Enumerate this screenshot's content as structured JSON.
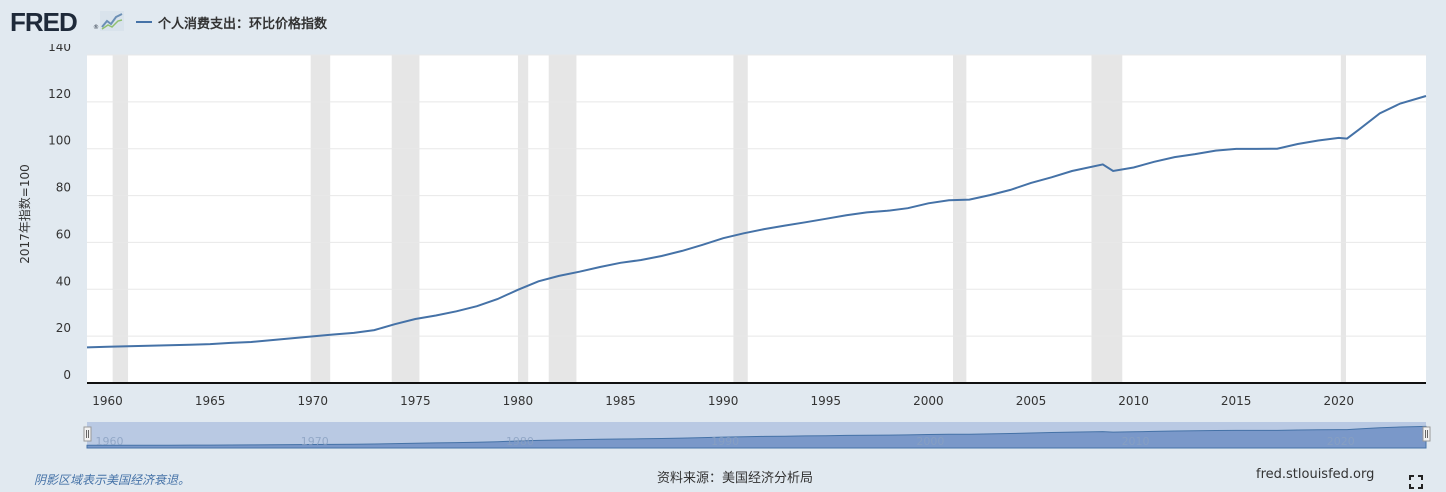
{
  "header": {
    "logo_text": "FRED",
    "logo_reg": "®",
    "logo_icon": "trend-chart-icon",
    "series_label": "个人消费支出：环比价格指数"
  },
  "chart_data": {
    "type": "line",
    "ylabel": "2017年指数=100",
    "xlim": [
      1959.0,
      2024.25
    ],
    "ylim": [
      0,
      140
    ],
    "y_ticks": [
      0,
      20,
      40,
      60,
      80,
      100,
      120,
      140
    ],
    "x_ticks": [
      1960,
      1965,
      1970,
      1975,
      1980,
      1985,
      1990,
      1995,
      2000,
      2005,
      2010,
      2015,
      2020
    ],
    "grid": true,
    "recessions": [
      [
        1960.25,
        1961.0
      ],
      [
        1969.9,
        1970.85
      ],
      [
        1973.85,
        1975.2
      ],
      [
        1980.0,
        1980.5
      ],
      [
        1981.5,
        1982.85
      ],
      [
        1990.5,
        1991.2
      ],
      [
        2001.2,
        2001.85
      ],
      [
        2007.95,
        2009.45
      ],
      [
        2020.1,
        2020.35
      ]
    ],
    "series": [
      {
        "color": "#4572a7",
        "x": [
          1959.0,
          1960,
          1961,
          1962,
          1963,
          1964,
          1965,
          1966,
          1967,
          1968,
          1969,
          1970,
          1971,
          1972,
          1973,
          1974,
          1975,
          1976,
          1977,
          1978,
          1979,
          1980,
          1981,
          1982,
          1983,
          1984,
          1985,
          1986,
          1987,
          1988,
          1989,
          1990,
          1991,
          1992,
          1993,
          1994,
          1995,
          1996,
          1997,
          1998,
          1999,
          2000,
          2001,
          2002,
          2003,
          2004,
          2005,
          2006,
          2007,
          2008.5,
          2009,
          2010,
          2011,
          2012,
          2013,
          2014,
          2015,
          2016,
          2017,
          2018,
          2019,
          2020,
          2020.4,
          2021,
          2022,
          2023,
          2024.25
        ],
        "values": [
          15.2,
          15.5,
          15.7,
          15.9,
          16.1,
          16.3,
          16.6,
          17.1,
          17.5,
          18.3,
          19.1,
          19.9,
          20.7,
          21.4,
          22.6,
          25.1,
          27.3,
          28.8,
          30.6,
          32.8,
          35.8,
          39.8,
          43.4,
          45.7,
          47.5,
          49.5,
          51.3,
          52.5,
          54.2,
          56.4,
          59.0,
          61.8,
          63.9,
          65.7,
          67.2,
          68.6,
          70.1,
          71.6,
          72.8,
          73.5,
          74.6,
          76.7,
          78.0,
          78.3,
          80.2,
          82.4,
          85.4,
          87.8,
          90.5,
          93.3,
          90.5,
          92.0,
          94.4,
          96.4,
          97.7,
          99.2,
          99.9,
          99.9,
          100.0,
          102.0,
          103.5,
          104.6,
          104.3,
          108.3,
          115.1,
          119.3,
          122.5
        ]
      }
    ]
  },
  "navigator": {
    "labels": [
      "1960",
      "1970",
      "1980",
      "1990",
      "2000",
      "2010",
      "2020"
    ]
  },
  "footer": {
    "note": "阴影区域表示美国经济衰退。",
    "source": "资料来源：美国经济分析局",
    "site": "fred.stlouisfed.org",
    "fullscreen_icon": "fullscreen-icon"
  }
}
